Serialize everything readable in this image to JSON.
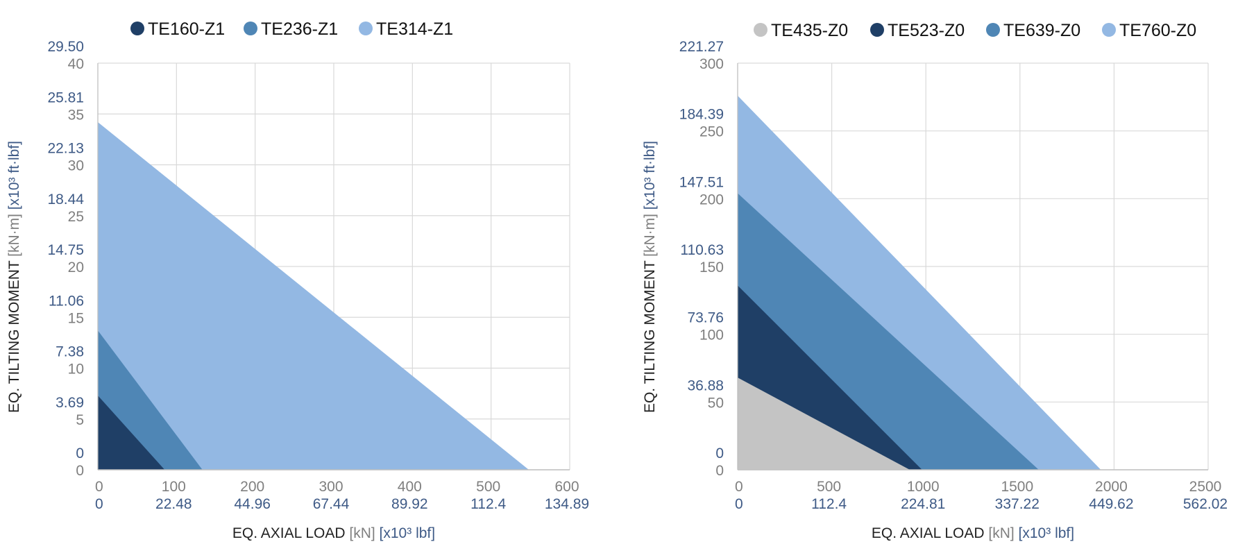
{
  "colors": {
    "grid": "#d9d9d9",
    "tick_primary": "#7f7f7f",
    "tick_secondary": "#3e5a86",
    "axis_title": "#222222"
  },
  "chart_data": [
    {
      "type": "area",
      "title": "",
      "legend_position": "top",
      "legend": [
        {
          "label": "TE160-Z1",
          "color": "#1f3f66"
        },
        {
          "label": "TE236-Z1",
          "color": "#4f86b5"
        },
        {
          "label": "TE314-Z1",
          "color": "#93b8e3"
        }
      ],
      "xlim": [
        0,
        600
      ],
      "ylim": [
        0,
        40
      ],
      "x_ticks": [
        0,
        100,
        200,
        300,
        400,
        500,
        600
      ],
      "x_ticks_secondary": [
        "0",
        "22.48",
        "44.96",
        "67.44",
        "89.92",
        "112.4",
        "134.89"
      ],
      "y_ticks": [
        0,
        5,
        10,
        15,
        20,
        25,
        30,
        35,
        40
      ],
      "y_ticks_secondary": [
        "0",
        "3.69",
        "7.38",
        "11.06",
        "14.75",
        "18.44",
        "22.13",
        "25.81",
        "29.50"
      ],
      "xlabel": {
        "main": "EQ. AXIAL LOAD",
        "unit1": "[kN]",
        "unit2": "[x10³ lbf]"
      },
      "ylabel": {
        "main": "EQ. TILTING MOMENT",
        "unit1": "[kN·m]",
        "unit2": "[x10³ ft·lbf]"
      },
      "series": [
        {
          "name": "TE314-Z1",
          "color": "#93b8e3",
          "y_intercept": 34.2,
          "x_intercept": 548
        },
        {
          "name": "TE236-Z1",
          "color": "#4f86b5",
          "y_intercept": 13.7,
          "x_intercept": 133
        },
        {
          "name": "TE160-Z1",
          "color": "#1f3f66",
          "y_intercept": 7.3,
          "x_intercept": 85
        }
      ]
    },
    {
      "type": "area",
      "title": "",
      "legend_position": "top",
      "legend": [
        {
          "label": "TE435-Z0",
          "color": "#c4c4c4"
        },
        {
          "label": "TE523-Z0",
          "color": "#1f3f66"
        },
        {
          "label": "TE639-Z0",
          "color": "#4f86b5"
        },
        {
          "label": "TE760-Z0",
          "color": "#93b8e3"
        }
      ],
      "xlim": [
        0,
        2500
      ],
      "ylim": [
        0,
        300
      ],
      "x_ticks": [
        0,
        500,
        1000,
        1500,
        2000,
        2500
      ],
      "x_ticks_secondary": [
        "0",
        "112.4",
        "224.81",
        "337.22",
        "449.62",
        "562.02"
      ],
      "y_ticks": [
        0,
        50,
        100,
        150,
        200,
        250,
        300
      ],
      "y_ticks_secondary": [
        "0",
        "36.88",
        "73.76",
        "110.63",
        "147.51",
        "184.39",
        "221.27"
      ],
      "xlabel": {
        "main": "EQ. AXIAL LOAD",
        "unit1": "[kN]",
        "unit2": "[x10³ lbf]"
      },
      "ylabel": {
        "main": "EQ. TILTING MOMENT",
        "unit1": "[kN·m]",
        "unit2": "[x10³ ft·lbf]"
      },
      "series": [
        {
          "name": "TE760-Z0",
          "color": "#93b8e3",
          "y_intercept": 276,
          "x_intercept": 1930
        },
        {
          "name": "TE639-Z0",
          "color": "#4f86b5",
          "y_intercept": 204,
          "x_intercept": 1600
        },
        {
          "name": "TE523-Z0",
          "color": "#1f3f66",
          "y_intercept": 136,
          "x_intercept": 980
        },
        {
          "name": "TE435-Z0",
          "color": "#c4c4c4",
          "y_intercept": 68,
          "x_intercept": 915
        }
      ]
    }
  ]
}
